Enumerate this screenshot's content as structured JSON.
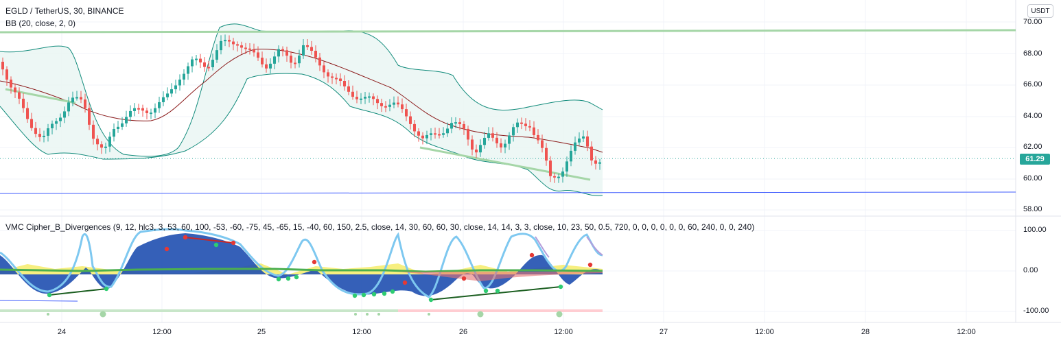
{
  "header": {
    "symbol_title": "EGLD / TetherUS, 30, BINANCE",
    "bb_label": "BB (20, close, 2, 0)",
    "currency": "USDT",
    "last_price": "61.29"
  },
  "indicator": {
    "label": "VMC Cipher_B_Divergences (9, 12, hlc3, 3, 53, 60, 100, -53, -60, -75, 45, -65, 15, -40, 60, 150, 2.5, close, 14, 30, 60, 60, 30, close, 14, 14, 3, 3, close, 10, 23, 50, 0.5, 720, 0, 0, 0, 0, 0, 0, 60, 240, 0, 0, 240)"
  },
  "price_axis": [
    "70.00",
    "68.00",
    "66.00",
    "64.00",
    "62.00",
    "60.00",
    "58.00"
  ],
  "indicator_axis": [
    "100.00",
    "0.00",
    "-100.00"
  ],
  "time_axis": [
    "24",
    "12:00",
    "25",
    "12:00",
    "26",
    "12:00",
    "27",
    "12:00",
    "28",
    "12:00"
  ],
  "colors": {
    "up": "#26a69a",
    "down": "#ef5350",
    "bb_fill": "#e8f5f3",
    "bb_band": "#0f8a7a",
    "bb_basis": "#8b1a1a",
    "resistance": "#a5d6a7",
    "support_line": "#3d5afe",
    "wave_blue": "#1f4fb0",
    "wave_light": "#7ec8f0",
    "money_flow_yellow": "#f3e84a",
    "divergence_red": "#c62828",
    "divergence_green": "#1b5e20"
  }
}
